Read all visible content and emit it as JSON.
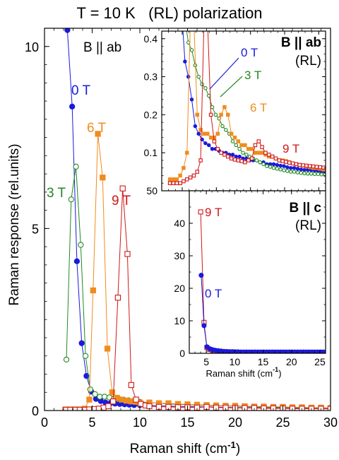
{
  "title": "T = 10 K   (RL) polarization",
  "colors": {
    "0T": "#1a1adc",
    "3T": "#1f8a1f",
    "6T": "#f08c1e",
    "9T": "#d01818"
  },
  "chart_data": [
    {
      "type": "line",
      "panel": "main",
      "panel_label": "B || ab",
      "xlabel": "Raman shift (cm-1)",
      "ylabel": "Raman response (rel.units)",
      "xlim": [
        0,
        30
      ],
      "ylim": [
        0,
        10.5
      ],
      "x_ticks": [
        0,
        5,
        10,
        15,
        20,
        25,
        30
      ],
      "y_ticks": [
        0,
        5,
        10
      ],
      "series": [
        {
          "name": "0 T",
          "color_key": "0T",
          "marker": "filled-circle",
          "x": [
            2.4,
            2.9,
            3.4,
            3.9,
            4.4,
            4.9,
            5.4,
            5.9,
            6.4,
            6.9,
            7.4,
            7.9,
            8.4,
            8.9,
            9.4,
            10,
            11,
            12,
            13,
            14,
            15,
            16,
            17,
            18,
            19,
            20,
            21,
            22,
            23,
            24,
            25,
            26,
            27,
            28,
            29,
            30
          ],
          "y": [
            10.45,
            8.35,
            4.1,
            1.85,
            0.95,
            0.52,
            0.32,
            0.26,
            0.22,
            0.2,
            0.19,
            0.18,
            0.17,
            0.16,
            0.15,
            0.15,
            0.14,
            0.13,
            0.12,
            0.11,
            0.11,
            0.1,
            0.1,
            0.09,
            0.09,
            0.08,
            0.08,
            0.08,
            0.07,
            0.07,
            0.07,
            0.06,
            0.06,
            0.06,
            0.05,
            0.05
          ]
        },
        {
          "name": "3 T",
          "color_key": "3T",
          "marker": "open-circle",
          "x": [
            2.3,
            2.8,
            3.3,
            3.8,
            4.3,
            4.8,
            5.3,
            5.8,
            6.3,
            6.8,
            7.3,
            7.8,
            8.3,
            8.8,
            9.3,
            10,
            11,
            12,
            13,
            14,
            16,
            18,
            20,
            22,
            24,
            26,
            28,
            30
          ],
          "y": [
            1.4,
            5.8,
            6.7,
            4.55,
            1.5,
            0.58,
            0.45,
            0.38,
            0.38,
            0.36,
            0.33,
            0.32,
            0.3,
            0.28,
            0.26,
            0.24,
            0.22,
            0.2,
            0.18,
            0.17,
            0.15,
            0.13,
            0.12,
            0.1,
            0.09,
            0.08,
            0.07,
            0.06
          ]
        },
        {
          "name": "6 T",
          "color_key": "6T",
          "marker": "filled-square",
          "x": [
            2.2,
            2.7,
            3.2,
            3.7,
            4.2,
            4.7,
            5.1,
            5.6,
            6.1,
            6.6,
            7.1,
            7.6,
            8.1,
            8.6,
            9.1,
            9.6,
            10,
            11,
            12,
            13,
            14,
            15,
            16,
            17,
            18,
            19,
            20,
            21,
            22,
            23,
            24,
            25,
            26,
            27,
            28,
            29,
            30
          ],
          "y": [
            0.03,
            0.03,
            0.03,
            0.03,
            0.05,
            0.3,
            3.3,
            7.6,
            6.4,
            1.7,
            0.5,
            0.35,
            0.3,
            0.27,
            0.25,
            0.24,
            0.22,
            0.22,
            0.2,
            0.2,
            0.18,
            0.17,
            0.16,
            0.15,
            0.14,
            0.13,
            0.13,
            0.12,
            0.11,
            0.11,
            0.1,
            0.1,
            0.09,
            0.09,
            0.08,
            0.08,
            0.07
          ]
        },
        {
          "name": "9 T",
          "color_key": "9T",
          "marker": "open-square",
          "x": [
            2.2,
            2.7,
            3.2,
            3.7,
            4.2,
            4.7,
            5.2,
            5.7,
            6.2,
            6.7,
            7.2,
            7.7,
            8.2,
            8.7,
            9.1,
            9.6,
            10.1,
            10.6,
            11,
            12,
            13,
            14,
            15,
            16,
            17,
            18,
            19,
            20,
            21,
            22,
            23,
            24,
            25,
            26,
            27,
            28,
            29,
            30
          ],
          "y": [
            0.02,
            0.02,
            0.02,
            0.02,
            0.02,
            0.03,
            0.04,
            0.05,
            0.08,
            0.12,
            0.25,
            3.1,
            6.1,
            4.3,
            0.7,
            0.3,
            0.18,
            0.14,
            0.12,
            0.1,
            0.1,
            0.09,
            0.09,
            0.08,
            0.1,
            0.08,
            0.08,
            0.07,
            0.07,
            0.07,
            0.06,
            0.06,
            0.06,
            0.05,
            0.05,
            0.05,
            0.05,
            0.05
          ]
        }
      ]
    },
    {
      "type": "line",
      "panel": "inset-top",
      "panel_label": "B || ab",
      "panel_sublabel": "(RL)",
      "xlim": [
        2,
        26
      ],
      "ylim": [
        0,
        0.42
      ],
      "x_ticks": [
        5,
        10,
        15,
        20,
        25
      ],
      "y_ticks": [
        0.1,
        0.2,
        0.3,
        0.4
      ],
      "y_tick_labels": [
        "0.1",
        "0.2",
        "0.3",
        "0.4"
      ],
      "bottom_label": "50",
      "series": [
        {
          "name": "0 T",
          "color_key": "0T",
          "marker": "filled-circle",
          "x": [
            5.0,
            5.4,
            5.9,
            6.4,
            6.9,
            7.4,
            7.9,
            8.4,
            8.9,
            9.4,
            9.9,
            10.4,
            10.9,
            11.4,
            11.9,
            12.4,
            12.9,
            13.4,
            13.9,
            14.4,
            14.9,
            15.4,
            15.9,
            16.4,
            16.9,
            17.4,
            17.9,
            18.4,
            18.9,
            19.4,
            19.9,
            20.4,
            20.9,
            21.4,
            21.9,
            22.4,
            22.9,
            23.4,
            23.9,
            24.4,
            24.9,
            25.4,
            25.9
          ],
          "y": [
            0.45,
            0.34,
            0.3,
            0.24,
            0.17,
            0.15,
            0.135,
            0.125,
            0.12,
            0.11,
            0.11,
            0.105,
            0.1,
            0.1,
            0.095,
            0.095,
            0.09,
            0.09,
            0.085,
            0.085,
            0.08,
            0.08,
            0.08,
            0.075,
            0.075,
            0.07,
            0.07,
            0.07,
            0.068,
            0.066,
            0.065,
            0.062,
            0.06,
            0.06,
            0.058,
            0.056,
            0.055,
            0.055,
            0.054,
            0.053,
            0.052,
            0.05,
            0.05
          ]
        },
        {
          "name": "3 T",
          "color_key": "3T",
          "marker": "open-circle",
          "x": [
            5.4,
            5.9,
            6.4,
            6.9,
            7.4,
            7.9,
            8.4,
            8.9,
            9.4,
            9.9,
            10.4,
            10.9,
            11.4,
            11.9,
            12.4,
            12.9,
            13.4,
            13.9,
            14.4,
            14.9,
            15.4,
            15.9,
            16.4,
            16.9,
            17.4,
            17.9,
            18.4,
            18.9,
            19.4,
            19.9,
            20.4,
            20.9,
            21.4,
            21.9,
            22.4,
            22.9,
            23.4,
            23.9,
            24.4,
            24.9,
            25.4,
            25.9
          ],
          "y": [
            0.45,
            0.39,
            0.37,
            0.33,
            0.3,
            0.28,
            0.27,
            0.25,
            0.22,
            0.2,
            0.19,
            0.17,
            0.16,
            0.15,
            0.13,
            0.12,
            0.11,
            0.1,
            0.095,
            0.09,
            0.085,
            0.08,
            0.075,
            0.07,
            0.065,
            0.063,
            0.06,
            0.058,
            0.056,
            0.054,
            0.052,
            0.05,
            0.05,
            0.048,
            0.047,
            0.046,
            0.045,
            0.045,
            0.044,
            0.044,
            0.043,
            0.042
          ]
        },
        {
          "name": "6 T",
          "color_key": "6T",
          "marker": "filled-square",
          "x": [
            3.2,
            3.7,
            4.2,
            4.7,
            5.2,
            5.7,
            6.2,
            6.7,
            7.2,
            7.7,
            8.2,
            8.7,
            9.2,
            9.7,
            10.2,
            10.7,
            11.2,
            11.7,
            12.2,
            12.7,
            13.2,
            13.7,
            14.2,
            14.7,
            15.2,
            15.7,
            16.2,
            16.7,
            17.2,
            17.7,
            18.2,
            18.7,
            19.2,
            19.7,
            20.2,
            20.7,
            21.2,
            21.7,
            22.2,
            22.7,
            23.2,
            23.7,
            24.2,
            24.7,
            25.2,
            25.7
          ],
          "y": [
            0.03,
            0.03,
            0.03,
            0.04,
            0.06,
            0.1,
            0.45,
            0.45,
            0.2,
            0.16,
            0.15,
            0.15,
            0.14,
            0.14,
            0.15,
            0.2,
            0.22,
            0.2,
            0.15,
            0.14,
            0.13,
            0.12,
            0.12,
            0.11,
            0.11,
            0.1,
            0.1,
            0.1,
            0.095,
            0.09,
            0.09,
            0.085,
            0.08,
            0.08,
            0.078,
            0.075,
            0.072,
            0.07,
            0.068,
            0.066,
            0.064,
            0.062,
            0.06,
            0.06,
            0.058,
            0.056
          ]
        },
        {
          "name": "9 T",
          "color_key": "9T",
          "marker": "open-square",
          "x": [
            3.2,
            3.7,
            4.2,
            4.7,
            5.2,
            5.7,
            6.2,
            6.7,
            7.2,
            7.7,
            8.2,
            8.7,
            9.2,
            9.7,
            10.2,
            10.7,
            11.2,
            11.7,
            12.2,
            12.7,
            13.2,
            13.7,
            14.2,
            14.7,
            15.2,
            15.7,
            16.2,
            16.7,
            17.2,
            17.7,
            18.2,
            18.7,
            19.2,
            19.7,
            20.2,
            20.7,
            21.2,
            21.7,
            22.2,
            22.7,
            23.2,
            23.7,
            24.2,
            24.7,
            25.2,
            25.7
          ],
          "y": [
            0.02,
            0.02,
            0.02,
            0.02,
            0.025,
            0.03,
            0.035,
            0.04,
            0.05,
            0.08,
            0.45,
            0.45,
            0.2,
            0.13,
            0.11,
            0.1,
            0.095,
            0.09,
            0.085,
            0.082,
            0.08,
            0.078,
            0.075,
            0.08,
            0.085,
            0.12,
            0.13,
            0.115,
            0.1,
            0.095,
            0.09,
            0.085,
            0.08,
            0.078,
            0.076,
            0.074,
            0.072,
            0.07,
            0.068,
            0.067,
            0.066,
            0.065,
            0.064,
            0.063,
            0.062,
            0.061
          ]
        }
      ]
    },
    {
      "type": "line",
      "panel": "inset-bottom",
      "panel_label": "B || c",
      "panel_sublabel": "(RL)",
      "xlabel": "Raman shift (cm-1)",
      "xlim": [
        2,
        26
      ],
      "ylim": [
        0,
        50
      ],
      "x_ticks": [
        5,
        10,
        15,
        20,
        25
      ],
      "y_ticks": [
        0,
        10,
        20,
        30,
        40
      ],
      "series": [
        {
          "name": "9 T",
          "color_key": "9T",
          "marker": "open-square",
          "x": [
            4.0,
            4.6,
            5.1,
            5.6,
            6.1,
            6.6,
            7.1,
            7.6,
            8.1,
            8.6,
            9.1,
            9.6,
            10.1,
            10.6,
            11.1,
            11.6,
            12.1,
            12.6,
            13.1,
            13.6,
            14.1,
            14.6,
            15.1,
            15.6,
            16.1,
            16.6,
            17.1,
            17.6,
            18.1,
            18.6,
            19.1,
            19.6,
            20.1,
            20.6,
            21.1,
            21.6,
            22.1,
            22.6,
            23.1,
            23.6,
            24.1,
            24.6,
            25.1,
            25.6
          ],
          "y": [
            43.5,
            9.5,
            1.8,
            1.2,
            0.9,
            0.7,
            0.6,
            0.5,
            0.45,
            0.4,
            0.4,
            0.35,
            0.35,
            0.3,
            0.3,
            0.3,
            0.3,
            0.3,
            0.3,
            0.3,
            0.3,
            0.3,
            0.3,
            0.3,
            0.3,
            0.3,
            0.3,
            0.3,
            0.3,
            0.3,
            0.3,
            0.3,
            0.3,
            0.3,
            0.3,
            0.3,
            0.3,
            0.3,
            0.3,
            0.3,
            0.3,
            0.3,
            0.3,
            0.3
          ]
        },
        {
          "name": "0 T",
          "color_key": "0T",
          "marker": "filled-circle",
          "x": [
            4.1,
            4.6,
            5.1,
            5.6,
            6.1,
            6.6,
            7.1,
            7.6,
            8.1,
            8.6,
            9.1,
            9.6,
            10.1,
            10.6,
            11.1,
            11.6,
            12.1,
            12.6,
            13.1,
            13.6,
            14.1,
            14.6,
            15.1,
            15.6,
            16.1,
            16.6,
            17.1,
            17.6,
            18.1,
            18.6,
            19.1,
            19.6,
            20.1,
            20.6,
            21.1,
            21.6,
            22.1,
            22.6,
            23.1,
            23.6,
            24.1,
            24.6,
            25.1,
            25.6
          ],
          "y": [
            24.0,
            8.5,
            2.0,
            1.4,
            1.1,
            0.9,
            0.8,
            0.7,
            0.6,
            0.55,
            0.5,
            0.5,
            0.45,
            0.45,
            0.4,
            0.4,
            0.4,
            0.4,
            0.4,
            0.4,
            0.4,
            0.4,
            0.4,
            0.4,
            0.4,
            0.4,
            0.4,
            0.4,
            0.4,
            0.4,
            0.4,
            0.4,
            0.4,
            0.4,
            0.4,
            0.4,
            0.4,
            0.4,
            0.4,
            0.4,
            0.4,
            0.4,
            0.4,
            0.4
          ]
        }
      ]
    }
  ]
}
